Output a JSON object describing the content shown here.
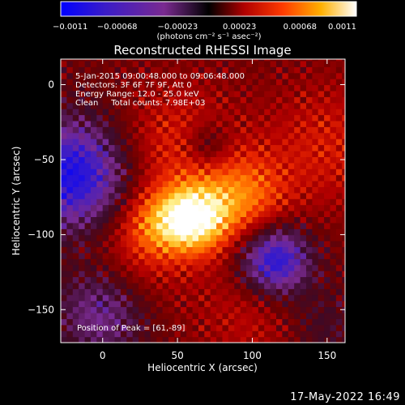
{
  "chart_data": {
    "type": "heatmap",
    "title": "Reconstructed RHESSI Image",
    "xlabel": "Heliocentric X (arcsec)",
    "ylabel": "Heliocentric Y (arcsec)",
    "xlim": [
      -28,
      162
    ],
    "ylim": [
      -172,
      17
    ],
    "x_ticks": [
      0,
      50,
      100,
      150
    ],
    "y_ticks": [
      -150,
      -100,
      -50,
      0
    ],
    "x_tick_labels": [
      "0",
      "50",
      "100",
      "150"
    ],
    "y_tick_labels": [
      "−150",
      "−100",
      "−50",
      "0"
    ],
    "colorbar": {
      "range": [
        -0.0011,
        0.0011
      ],
      "tick_values": [
        -0.0011,
        -0.00068,
        -0.00023,
        0.00023,
        0.00068,
        0.0011
      ],
      "tick_labels": [
        "−0.0011",
        "−0.00068",
        "−0.00023",
        "0.00023",
        "0.00068",
        "0.0011"
      ],
      "unit_label": "(photons cm⁻² s⁻¹ asec⁻²)"
    },
    "annotations": [
      "5-Jan-2015 09:00:48.000 to 09:06:48.000",
      "Detectors: 3F 6F 7F 9F, Att 0",
      "Energy Range: 12.0 - 25.0 keV",
      "Clean     Total counts: 7.98E+03"
    ],
    "peak_label": "Position of Peak = [61,-89]",
    "peak": {
      "x": 61,
      "y": -89
    },
    "sources": [
      {
        "x": 61,
        "y": -89,
        "amp": 1.0,
        "sigma": 16
      },
      {
        "x": 95,
        "y": -75,
        "amp": 0.55,
        "sigma": 20
      },
      {
        "x": 35,
        "y": -92,
        "amp": 0.45,
        "sigma": 16
      },
      {
        "x": 50,
        "y": -40,
        "amp": 0.35,
        "sigma": 28
      },
      {
        "x": 150,
        "y": -40,
        "amp": 0.3,
        "sigma": 30
      },
      {
        "x": 20,
        "y": -120,
        "amp": 0.25,
        "sigma": 25
      },
      {
        "x": 105,
        "y": -150,
        "amp": 0.25,
        "sigma": 30
      }
    ],
    "negative_regions": [
      {
        "x": -20,
        "y": -60,
        "depth": 0.85,
        "sigma": 26
      },
      {
        "x": 115,
        "y": -117,
        "depth": 0.9,
        "sigma": 17
      },
      {
        "x": 70,
        "y": -40,
        "depth": 0.35,
        "sigma": 11
      },
      {
        "x": 0,
        "y": -150,
        "depth": 0.5,
        "sigma": 22
      },
      {
        "x": 145,
        "y": -160,
        "depth": 0.25,
        "sigma": 20
      }
    ]
  },
  "timestamp": "17-May-2022 16:49"
}
